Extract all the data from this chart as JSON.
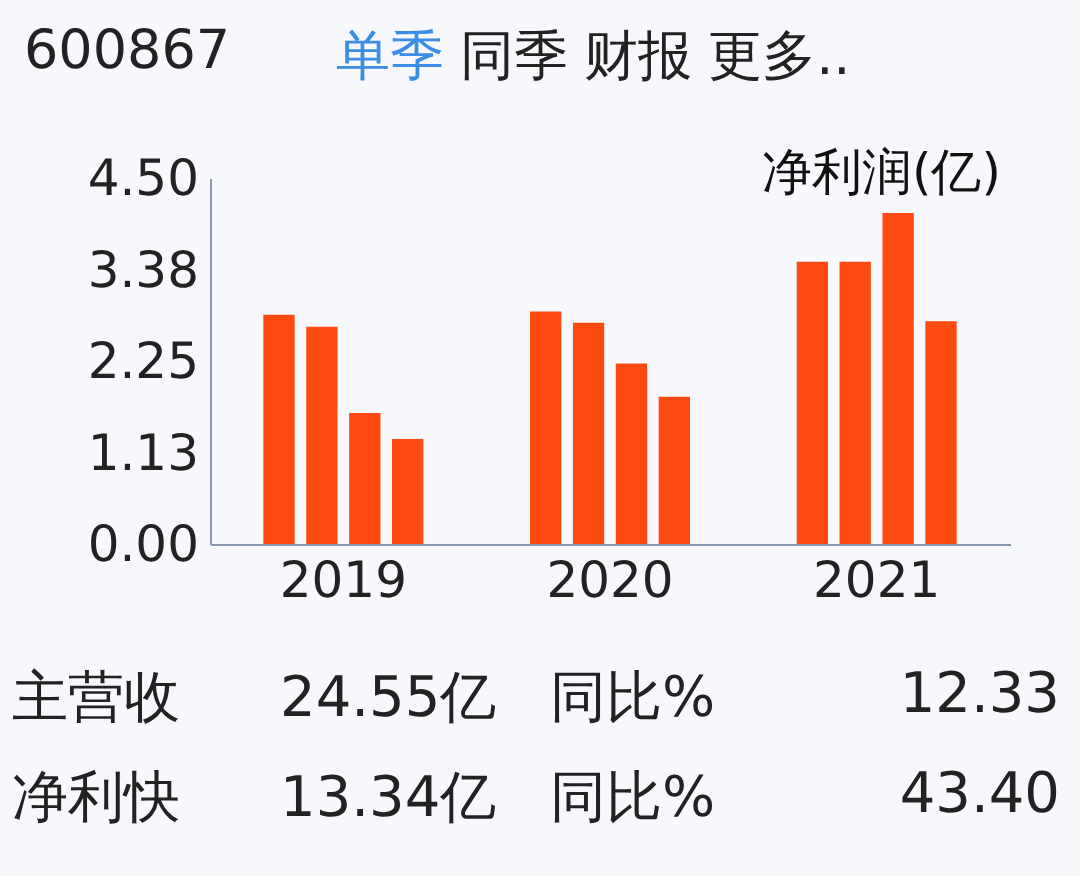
{
  "chart_data": {
    "type": "bar",
    "title": "600867",
    "subtitle": "单季 同季 财报 更多..",
    "ylabel": "净利润(亿)",
    "categories": [
      "2019",
      "2020",
      "2021"
    ],
    "series": [
      {
        "color": "#fc4a10",
        "values": [
          2.82,
          2.86,
          3.47
        ]
      },
      {
        "color": "#fc4a10",
        "values": [
          2.67,
          2.72,
          3.47
        ]
      },
      {
        "color": "#fc4a10",
        "values": [
          1.61,
          2.22,
          4.07
        ]
      },
      {
        "color": "#fc4a10",
        "values": [
          1.29,
          1.81,
          2.74
        ]
      }
    ],
    "ylim": [
      0,
      4.5
    ],
    "yticks": [
      {
        "value": 0,
        "label": "0.00"
      },
      {
        "value": 1.125,
        "label": "1.13"
      },
      {
        "value": 2.25,
        "label": "2.25"
      },
      {
        "value": 3.375,
        "label": "3.38"
      },
      {
        "value": 4.5,
        "label": "4.50"
      }
    ],
    "grid": false,
    "legend": false,
    "annotations": [
      "主营收",
      "24.55亿",
      "同比%",
      "12.33",
      "净利快",
      "13.34亿",
      "同比%",
      "43.40"
    ]
  }
}
